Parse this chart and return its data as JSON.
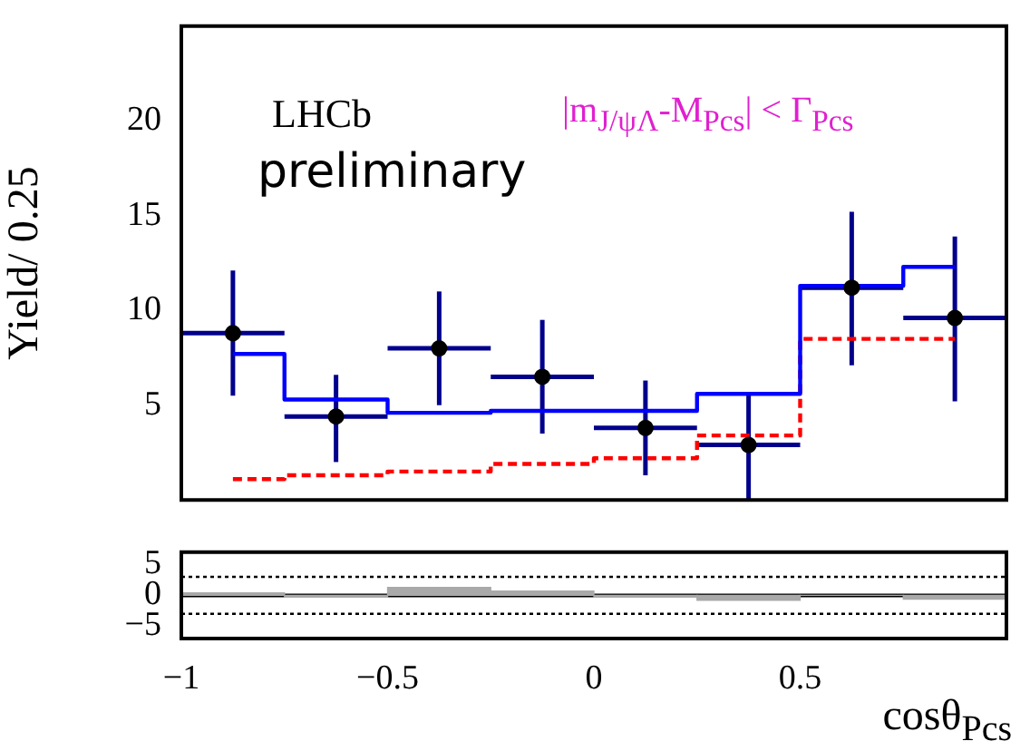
{
  "chart_data": [
    {
      "type": "step",
      "ylabel": "Yield/ 0.25",
      "annotations": [
        "LHCb",
        "preliminary",
        "|m$_{J/ψΛ}$-M$_{Pcs}$| < Γ$_{Pcs}$"
      ],
      "x": [
        -0.875,
        -0.625,
        -0.375,
        -0.125,
        0.125,
        0.375,
        0.625,
        0.875
      ],
      "series": [
        {
          "type": "scatter",
          "color": "#000000",
          "marker": "circle",
          "values": [
            8.8,
            4.4,
            8.0,
            6.5,
            3.8,
            2.9,
            11.2,
            9.6
          ],
          "errors": [
            [
              5.5,
              12.1
            ],
            [
              2.0,
              6.6
            ],
            [
              5.0,
              11.0
            ],
            [
              3.5,
              9.5
            ],
            [
              1.3,
              6.3
            ],
            [
              0,
              5.6
            ],
            [
              7.1,
              15.2
            ],
            [
              5.2,
              13.9
            ]
          ],
          "xerrors": [
            0.125,
            0.125,
            0.125,
            0.125,
            0.125,
            0.125,
            0.125,
            0.125
          ]
        },
        {
          "type": "step",
          "color": "#0000ff",
          "line_style": "solid",
          "values": [
            7.7,
            5.3,
            4.6,
            4.7,
            4.7,
            5.6,
            11.3,
            12.3
          ]
        },
        {
          "type": "step",
          "color": "#ff0000",
          "line_style": "dashed",
          "values": [
            1.1,
            1.3,
            1.5,
            1.9,
            2.2,
            3.4,
            8.5,
            8.5
          ]
        }
      ],
      "xlim": [
        -1,
        1
      ],
      "xticks": [
        -1,
        -0.5,
        0,
        0.5
      ],
      "ylim": [
        0,
        25
      ],
      "yticks": [
        5,
        10,
        15,
        20
      ],
      "tick_labels": "y",
      "grid": false,
      "legend": false
    },
    {
      "type": "bar",
      "xlabel": "cosθ$_{Pcs}$",
      "x": [
        -0.875,
        -0.625,
        -0.375,
        -0.125,
        0.125,
        0.375,
        0.625,
        0.875
      ],
      "color": "#a9a9a9",
      "values": [
        0.4,
        -0.3,
        1.3,
        0.7,
        -0.3,
        -0.8,
        0,
        -0.6
      ],
      "xlim": [
        -1,
        1
      ],
      "xticks": [
        -1,
        -0.5,
        0,
        0.5
      ],
      "ylim": [
        -7,
        7
      ],
      "yticks": [
        -5,
        0,
        5
      ],
      "grid": false,
      "legend": false,
      "ref_lines": [
        {
          "axis": "y",
          "value": 3,
          "line_style": "dotted"
        },
        {
          "axis": "y",
          "value": -3,
          "line_style": "dotted"
        },
        {
          "axis": "y",
          "value": 0,
          "line_style": "solid"
        }
      ]
    }
  ]
}
